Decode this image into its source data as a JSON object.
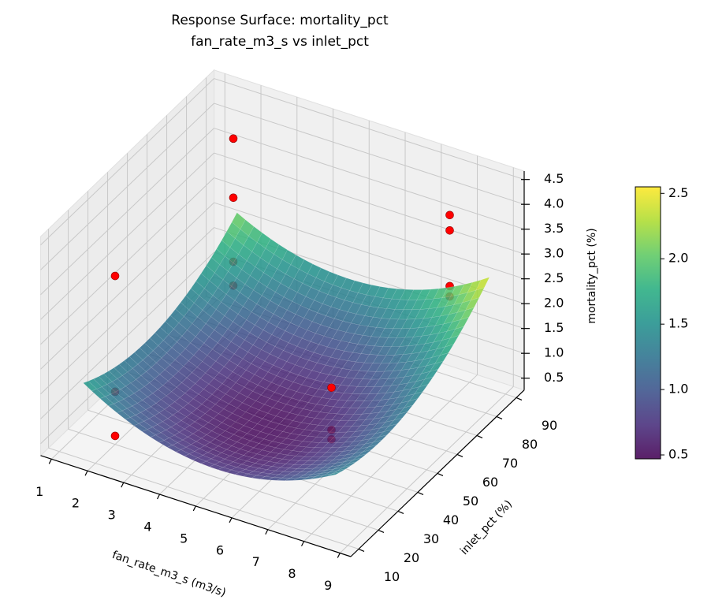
{
  "chart_data": {
    "type": "surface",
    "title": "Response Surface: mortality_pct",
    "subtitle": "fan_rate_m3_s vs inlet_pct",
    "xlabel": "fan_rate_m3_s (m3/s)",
    "ylabel": "inlet_pct (%)",
    "zlabel": "mortality_pct (%)",
    "xlim": [
      0.7,
      9.3
    ],
    "ylim": [
      6,
      94
    ],
    "zlim": [
      0.26,
      4.67
    ],
    "xticks": [
      "1",
      "2",
      "3",
      "4",
      "5",
      "6",
      "7",
      "8",
      "9"
    ],
    "yticks": [
      "10",
      "20",
      "30",
      "40",
      "50",
      "60",
      "70",
      "80",
      "90"
    ],
    "zticks": [
      "0.5",
      "1.0",
      "1.5",
      "2.0",
      "2.5",
      "3.0",
      "3.5",
      "4.0",
      "4.5"
    ],
    "grid": true,
    "colormap": "viridis",
    "colorbar": {
      "range": [
        0.47,
        2.55
      ],
      "ticks": [
        "0.5",
        "1.0",
        "1.5",
        "2.0",
        "2.5"
      ],
      "placement": "right"
    },
    "surface": {
      "x_range": [
        1.5,
        8.5
      ],
      "y_range": [
        13,
        91
      ],
      "fit": {
        "form": "z = z0 + a*(x-x0)^2 + b*(y-y0)^2 + c*(x-x0)*(y-y0)",
        "z0": 0.5,
        "x0": 5,
        "y0": 40,
        "a": 0.0625,
        "b": 0.00039,
        "c": 0.001
      }
    },
    "points": {
      "color": "#ff0000",
      "values": [
        {
          "x": 2,
          "y": 20,
          "z": 3.65
        },
        {
          "x": 2,
          "y": 20,
          "z": 1.32
        },
        {
          "x": 2,
          "y": 20,
          "z": 0.43
        },
        {
          "x": 2,
          "y": 80,
          "z": 4.13
        },
        {
          "x": 2,
          "y": 80,
          "z": 2.94
        },
        {
          "x": 2,
          "y": 80,
          "z": 1.65
        },
        {
          "x": 2,
          "y": 80,
          "z": 1.17
        },
        {
          "x": 8,
          "y": 20,
          "z": 2.82
        },
        {
          "x": 8,
          "y": 20,
          "z": 1.97
        },
        {
          "x": 8,
          "y": 20,
          "z": 1.78
        },
        {
          "x": 8,
          "y": 80,
          "z": 4.01
        },
        {
          "x": 8,
          "y": 80,
          "z": 3.7
        },
        {
          "x": 8,
          "y": 80,
          "z": 2.58
        },
        {
          "x": 8,
          "y": 80,
          "z": 2.37
        }
      ]
    }
  }
}
